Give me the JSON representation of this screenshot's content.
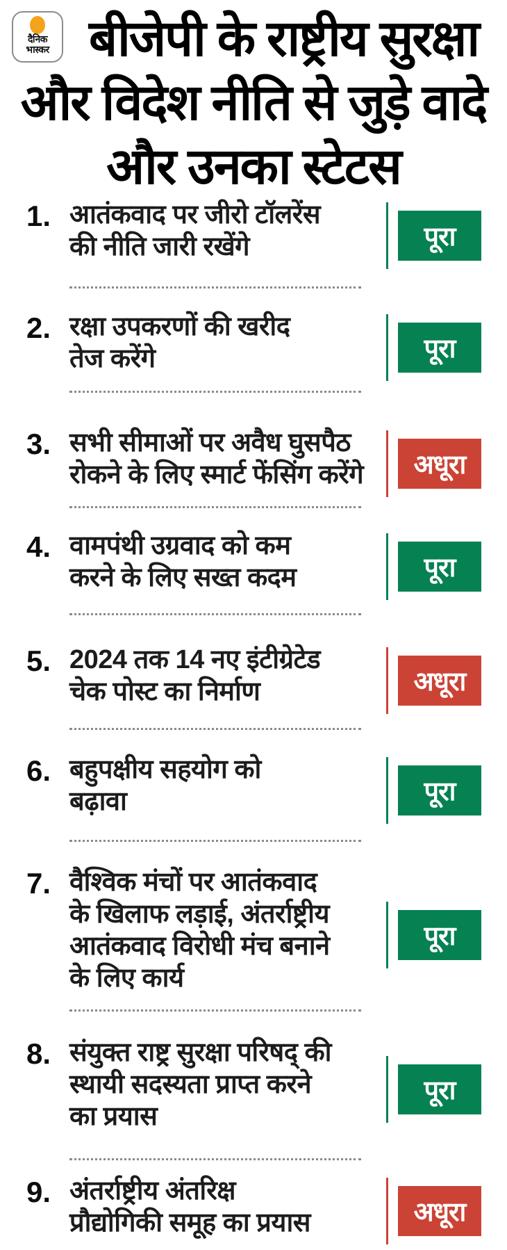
{
  "brand": {
    "logo_line1": "दैनिक",
    "logo_line2": "भास्कर",
    "logo_icon": "orange-sun-dot"
  },
  "header": {
    "title_lines": [
      "बीजेपी के राष्ट्रीय सुरक्षा",
      "और विदेश नीति से जुड़े वादे",
      "और उनका स्टेटस"
    ]
  },
  "colors": {
    "complete": "#068152",
    "incomplete": "#cb4335",
    "text": "#1c1c1c",
    "divider": "#8a8a8a",
    "logo_orange": "#f5a31c",
    "badge_text": "#ffffff"
  },
  "status_labels": {
    "complete": "पूरा",
    "incomplete": "अधूरा"
  },
  "items": [
    {
      "number": "1.",
      "lines": [
        "आतंकवाद पर जीरो टॉलरेंस",
        "की नीति जारी रखेंगे"
      ],
      "status": "पूरा",
      "status_type": "complete"
    },
    {
      "number": "2.",
      "lines": [
        "रक्षा उपकरणों की खरीद",
        "तेज करेंगे"
      ],
      "status": "पूरा",
      "status_type": "complete"
    },
    {
      "number": "3.",
      "lines": [
        "सभी सीमाओं पर अवैध घुसपैठ",
        "रोकने के लिए स्मार्ट फेंसिंग करेंगे"
      ],
      "status": "अधूरा",
      "status_type": "incomplete"
    },
    {
      "number": "4.",
      "lines": [
        "वामपंथी उग्रवाद को कम",
        "करने के लिए सख्त कदम"
      ],
      "status": "पूरा",
      "status_type": "complete"
    },
    {
      "number": "5.",
      "lines": [
        "2024 तक 14 नए इंटीग्रेटेड",
        "चेक पोस्ट का निर्माण"
      ],
      "status": "अधूरा",
      "status_type": "incomplete"
    },
    {
      "number": "6.",
      "lines": [
        "बहुपक्षीय सहयोग को",
        "बढ़ावा"
      ],
      "status": "पूरा",
      "status_type": "complete"
    },
    {
      "number": "7.",
      "lines": [
        "वैश्विक मंचों पर आतंकवाद",
        "के खिलाफ लड़ाई, अंतर्राष्ट्रीय",
        "आतंकवाद विरोधी मंच बनाने",
        "के लिए कार्य"
      ],
      "status": "पूरा",
      "status_type": "complete"
    },
    {
      "number": "8.",
      "lines": [
        "संयुक्त राष्ट्र सुरक्षा परिषद् की",
        "स्थायी सदस्यता प्राप्त करने",
        "का प्रयास"
      ],
      "status": "पूरा",
      "status_type": "complete"
    },
    {
      "number": "9.",
      "lines": [
        "अंतर्राष्ट्रीय अंतरिक्ष",
        "प्रौद्योगिकी समूह का प्रयास"
      ],
      "status": "अधूरा",
      "status_type": "incomplete"
    }
  ]
}
